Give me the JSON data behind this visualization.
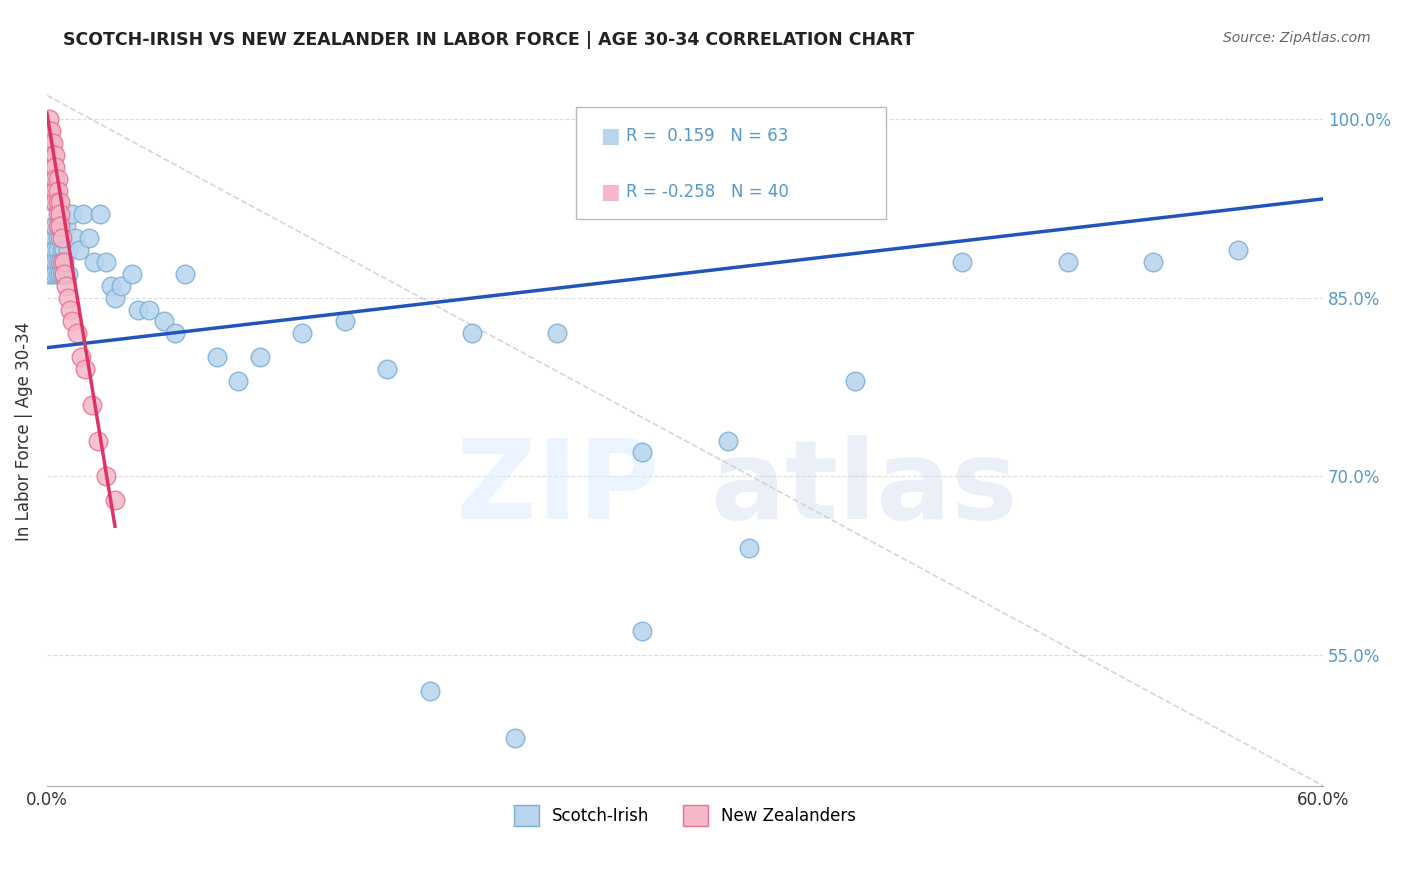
{
  "title": "SCOTCH-IRISH VS NEW ZEALANDER IN LABOR FORCE | AGE 30-34 CORRELATION CHART",
  "source": "Source: ZipAtlas.com",
  "ylabel": "In Labor Force | Age 30-34",
  "xlim": [
    0.0,
    0.6
  ],
  "ylim": [
    0.44,
    1.035
  ],
  "blue_R": 0.159,
  "blue_N": 63,
  "pink_R": -0.258,
  "pink_N": 40,
  "blue_color": "#b8d4ee",
  "blue_edge": "#7aafd4",
  "pink_color": "#f4b8c8",
  "pink_edge": "#e87090",
  "blue_line_color": "#2255bb",
  "pink_line_color": "#dd3366",
  "diag_color": "#cccccc",
  "grid_color": "#dddddd",
  "legend_blue_label": "Scotch-Irish",
  "legend_pink_label": "New Zealanders",
  "right_tick_color": "#5599cc",
  "blue_scatter_x": [
    0.001,
    0.001,
    0.002,
    0.002,
    0.002,
    0.003,
    0.003,
    0.003,
    0.003,
    0.004,
    0.004,
    0.004,
    0.004,
    0.005,
    0.005,
    0.005,
    0.005,
    0.006,
    0.006,
    0.006,
    0.007,
    0.007,
    0.008,
    0.008,
    0.009,
    0.01,
    0.01,
    0.012,
    0.013,
    0.015,
    0.017,
    0.02,
    0.022,
    0.025,
    0.028,
    0.03,
    0.032,
    0.035,
    0.04,
    0.043,
    0.048,
    0.055,
    0.06,
    0.065,
    0.08,
    0.09,
    0.1,
    0.12,
    0.14,
    0.16,
    0.2,
    0.24,
    0.28,
    0.32,
    0.38,
    0.43,
    0.48,
    0.52,
    0.56,
    0.28,
    0.33,
    0.18,
    0.22
  ],
  "blue_scatter_y": [
    0.88,
    0.87,
    0.9,
    0.88,
    0.87,
    0.93,
    0.91,
    0.89,
    0.88,
    0.91,
    0.89,
    0.88,
    0.87,
    0.9,
    0.89,
    0.88,
    0.87,
    0.9,
    0.88,
    0.87,
    0.89,
    0.87,
    0.89,
    0.87,
    0.91,
    0.89,
    0.87,
    0.92,
    0.9,
    0.89,
    0.92,
    0.9,
    0.88,
    0.92,
    0.88,
    0.86,
    0.85,
    0.86,
    0.87,
    0.84,
    0.84,
    0.83,
    0.82,
    0.87,
    0.8,
    0.78,
    0.8,
    0.82,
    0.83,
    0.79,
    0.82,
    0.82,
    0.72,
    0.73,
    0.78,
    0.88,
    0.88,
    0.88,
    0.89,
    0.57,
    0.64,
    0.52,
    0.48
  ],
  "pink_scatter_x": [
    0.001,
    0.001,
    0.001,
    0.002,
    0.002,
    0.002,
    0.002,
    0.003,
    0.003,
    0.003,
    0.003,
    0.003,
    0.004,
    0.004,
    0.004,
    0.004,
    0.004,
    0.005,
    0.005,
    0.005,
    0.005,
    0.005,
    0.006,
    0.006,
    0.006,
    0.007,
    0.007,
    0.008,
    0.008,
    0.009,
    0.01,
    0.011,
    0.012,
    0.014,
    0.016,
    0.018,
    0.021,
    0.024,
    0.028,
    0.032
  ],
  "pink_scatter_y": [
    1.0,
    0.99,
    0.98,
    0.99,
    0.98,
    0.97,
    0.96,
    0.98,
    0.97,
    0.96,
    0.95,
    0.94,
    0.97,
    0.96,
    0.95,
    0.94,
    0.93,
    0.95,
    0.94,
    0.93,
    0.92,
    0.91,
    0.93,
    0.92,
    0.91,
    0.9,
    0.88,
    0.88,
    0.87,
    0.86,
    0.85,
    0.84,
    0.83,
    0.82,
    0.8,
    0.79,
    0.76,
    0.73,
    0.7,
    0.68
  ],
  "blue_trendline_x": [
    0.0,
    0.6
  ],
  "blue_trendline_y": [
    0.808,
    0.933
  ],
  "pink_trendline_x": [
    0.0,
    0.032
  ],
  "pink_trendline_y": [
    1.005,
    0.658
  ]
}
